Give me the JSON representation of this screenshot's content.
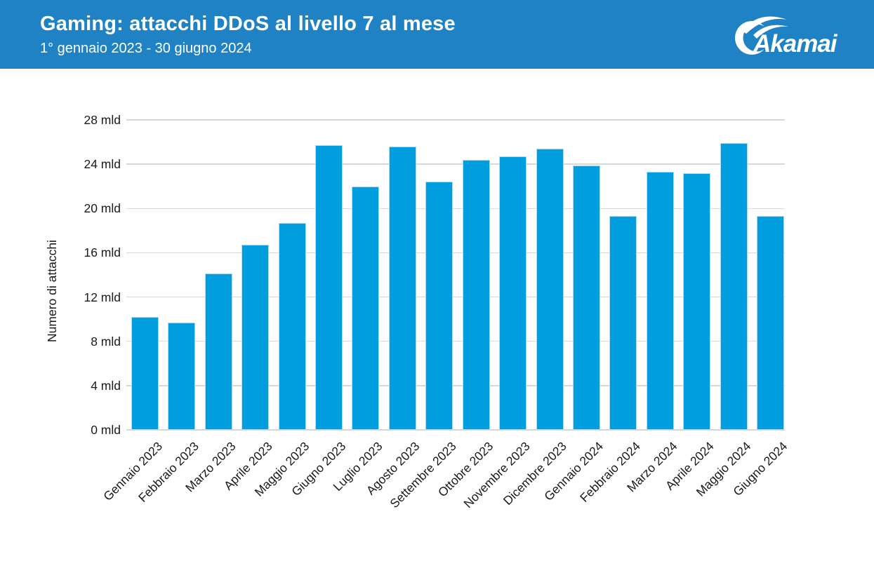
{
  "header": {
    "title": "Gaming: attacchi DDoS al livello 7 al mese",
    "subtitle": "1° gennaio 2023 - 30 giugno 2024",
    "background_color": "#1e82c5",
    "logo_text": "Akamai"
  },
  "chart_data": {
    "type": "bar",
    "title": "Gaming: attacchi DDoS al livello 7 al mese",
    "subtitle": "1° gennaio 2023 - 30 giugno 2024",
    "categories": [
      "Gennaio 2023",
      "Febbraio 2023",
      "Marzo 2023",
      "Aprile 2023",
      "Maggio 2023",
      "Giugno 2023",
      "Luglio 2023",
      "Agosto 2023",
      "Settembre 2023",
      "Ottobre 2023",
      "Novembre 2023",
      "Dicembre 2023",
      "Gennaio 2024",
      "Febbraio 2024",
      "Marzo 2024",
      "Aprile 2024",
      "Maggio 2024",
      "Giugno 2024"
    ],
    "values": [
      10.2,
      9.7,
      14.1,
      16.7,
      18.7,
      25.7,
      22.0,
      25.6,
      22.4,
      24.4,
      24.7,
      25.4,
      23.9,
      19.3,
      23.3,
      23.2,
      25.9,
      19.3
    ],
    "unit": "mld",
    "xlabel": "",
    "ylabel": "Numero di attacchi",
    "ylim": [
      0,
      28
    ],
    "y_tick_values": [
      0,
      4,
      8,
      12,
      16,
      20,
      24,
      28
    ],
    "y_tick_labels": [
      "0 mld",
      "4 mld",
      "8 mld",
      "12 mld",
      "16 mld",
      "20 mld",
      "24 mld",
      "28 mld"
    ],
    "grid": true,
    "legend": false,
    "bar_color": "#009ddf",
    "gridline_color": "#d8d8d8"
  }
}
